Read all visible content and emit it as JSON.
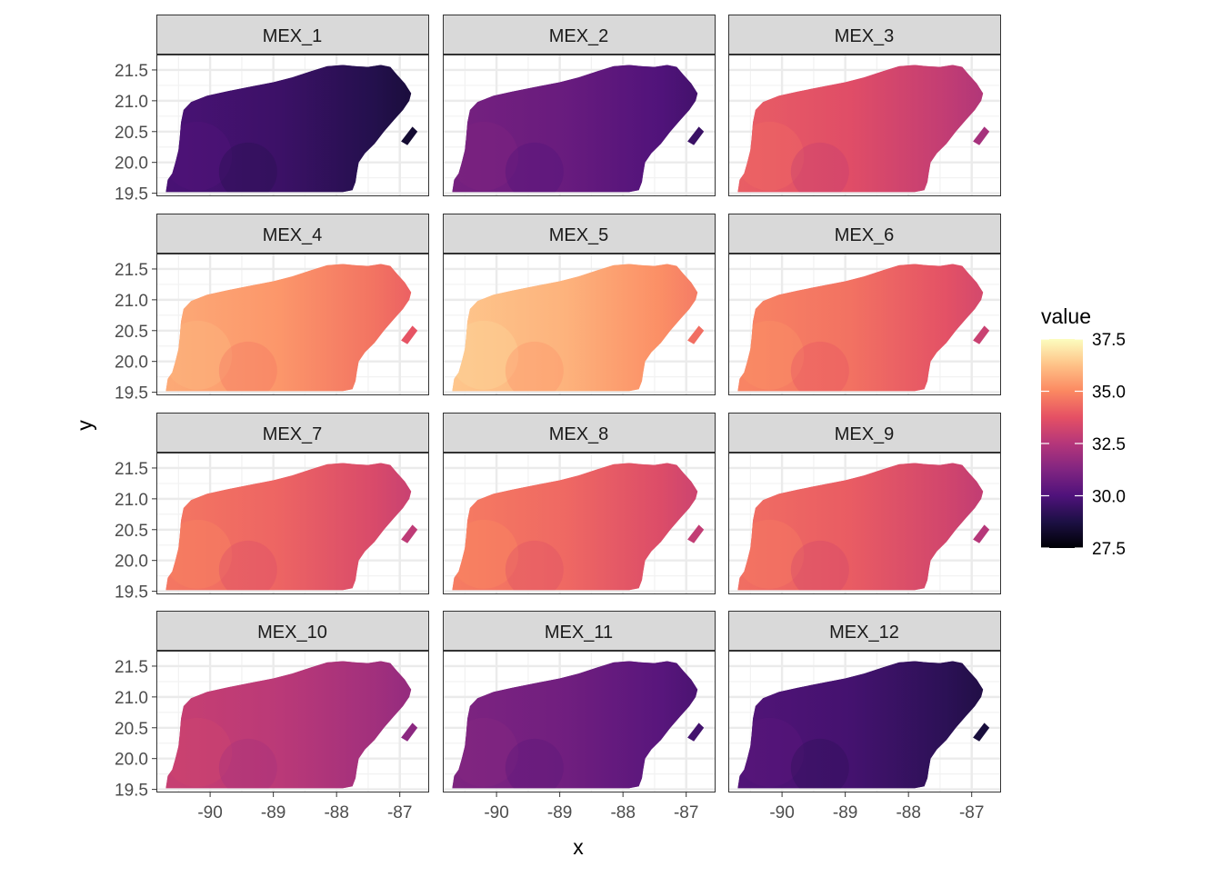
{
  "chart_data": {
    "type": "heatmap",
    "facet_layout": {
      "rows": 4,
      "cols": 3
    },
    "xlabel": "x",
    "ylabel": "y",
    "xlim": [
      -90.85,
      -86.55
    ],
    "ylim": [
      19.45,
      21.75
    ],
    "x_ticks": [
      -90,
      -89,
      -88,
      -87
    ],
    "x_tick_labels": [
      "-90",
      "-89",
      "-88",
      "-87"
    ],
    "y_ticks": [
      19.5,
      20.0,
      20.5,
      21.0,
      21.5
    ],
    "y_tick_labels": [
      "19.5",
      "20.0",
      "20.5",
      "21.0",
      "21.5"
    ],
    "grid": true,
    "panels": [
      {
        "name": "MEX_1",
        "typical_value": 29.3
      },
      {
        "name": "MEX_2",
        "typical_value": 30.4
      },
      {
        "name": "MEX_3",
        "typical_value": 33.3
      },
      {
        "name": "MEX_4",
        "typical_value": 35.0
      },
      {
        "name": "MEX_5",
        "typical_value": 35.6
      },
      {
        "name": "MEX_6",
        "typical_value": 34.2
      },
      {
        "name": "MEX_7",
        "typical_value": 33.9
      },
      {
        "name": "MEX_8",
        "typical_value": 34.0
      },
      {
        "name": "MEX_9",
        "typical_value": 33.7
      },
      {
        "name": "MEX_10",
        "typical_value": 32.4
      },
      {
        "name": "MEX_11",
        "typical_value": 30.6
      },
      {
        "name": "MEX_12",
        "typical_value": 29.5
      }
    ],
    "legend": {
      "title": "value",
      "position": "right",
      "range": [
        27.5,
        37.5
      ],
      "ticks": [
        27.5,
        30.0,
        32.5,
        35.0,
        37.5
      ],
      "tick_labels": [
        "27.5",
        "30.0",
        "32.5",
        "35.0",
        "37.5"
      ],
      "palette": "magma",
      "palette_stops": [
        "#000004",
        "#1c1044",
        "#4f127b",
        "#812581",
        "#b5367a",
        "#e55064",
        "#fb8861",
        "#fec287",
        "#fcfdbf"
      ]
    }
  }
}
